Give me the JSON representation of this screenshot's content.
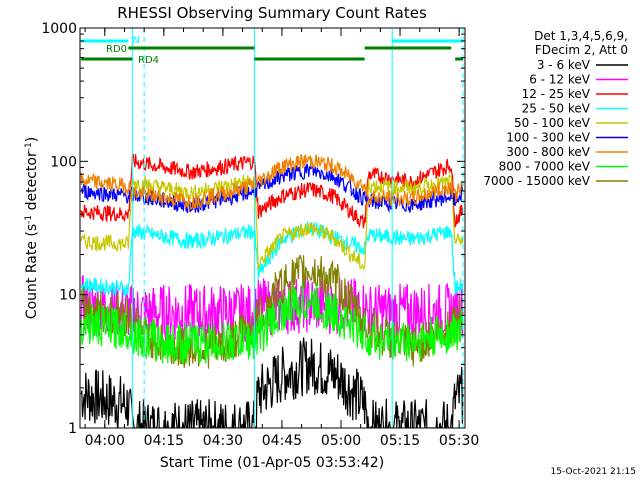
{
  "chart_data": {
    "type": "line",
    "title": "RHESSI Observing Summary Count Rates",
    "xlabel": "Start Time (01-Apr-05 03:53:42)",
    "ylabel": "Count Rate (s⁻¹ detector⁻¹)",
    "ylabel_parts": [
      "Count Rate (s",
      "-1",
      " detector",
      "-1",
      ")"
    ],
    "yscale": "log",
    "ylim": [
      1,
      1000
    ],
    "xlim": [
      "03:53:42",
      "05:31:30"
    ],
    "x_ticks": [
      "04:00",
      "04:15",
      "04:30",
      "04:45",
      "05:00",
      "05:15",
      "05:30"
    ],
    "y_ticks": [
      "1",
      "10",
      "100",
      "1000"
    ],
    "footer": "15-Oct-2021 21:15",
    "legend": {
      "placement": "right",
      "header": [
        "Det 1,3,4,5,6,9,",
        "FDecim 2, Att 0"
      ]
    },
    "series": [
      {
        "name": "3 - 6 keV",
        "color": "#000000",
        "x": [
          "03:54",
          "04:06",
          "04:07",
          "04:38",
          "04:39",
          "04:45",
          "04:52",
          "04:59",
          "05:06",
          "05:07",
          "05:28",
          "05:29",
          "05:31"
        ],
        "y": [
          1.8,
          1.5,
          1.0,
          1.0,
          1.8,
          2.5,
          3.0,
          2.5,
          1.5,
          1.0,
          1.0,
          1.6,
          1.8
        ]
      },
      {
        "name": "6 - 12 keV",
        "color": "#ff00ff",
        "x": [
          "03:54",
          "04:06",
          "04:07",
          "04:38",
          "04:39",
          "04:52",
          "05:06",
          "05:07",
          "05:28",
          "05:29",
          "05:31"
        ],
        "y": [
          8.5,
          7.5,
          7.3,
          7.3,
          8.0,
          8.5,
          8.0,
          7.4,
          7.4,
          7.6,
          8.0
        ]
      },
      {
        "name": "12 - 25 keV",
        "color": "#ff0000",
        "x": [
          "03:54",
          "04:06",
          "04:07",
          "04:22",
          "04:38",
          "04:39",
          "04:45",
          "04:52",
          "04:58",
          "05:06",
          "05:07",
          "05:18",
          "05:28",
          "05:29",
          "05:31"
        ],
        "y": [
          42,
          40,
          100,
          83,
          100,
          42,
          55,
          62,
          55,
          34,
          80,
          70,
          95,
          36,
          43
        ]
      },
      {
        "name": "25 - 50 keV",
        "color": "#00ffff",
        "x": [
          "03:54",
          "04:06",
          "04:07",
          "04:22",
          "04:38",
          "04:39",
          "04:45",
          "04:52",
          "04:58",
          "05:06",
          "05:07",
          "05:18",
          "05:28",
          "05:29",
          "05:31"
        ],
        "y": [
          12,
          11,
          30,
          25,
          30,
          14,
          26,
          32,
          27,
          22,
          28,
          26,
          30,
          11,
          12
        ]
      },
      {
        "name": "50 - 100 keV",
        "color": "#c8c800",
        "x": [
          "03:54",
          "04:06",
          "04:07",
          "04:22",
          "04:38",
          "04:39",
          "04:45",
          "04:52",
          "04:58",
          "05:06",
          "05:07",
          "05:18",
          "05:28",
          "05:29",
          "05:31"
        ],
        "y": [
          25,
          24,
          70,
          58,
          72,
          17,
          27,
          32,
          27,
          16,
          66,
          63,
          70,
          25,
          26
        ]
      },
      {
        "name": "100 - 300 keV",
        "color": "#0000ff",
        "x": [
          "03:54",
          "04:06",
          "04:07",
          "04:22",
          "04:38",
          "04:39",
          "04:45",
          "04:52",
          "04:58",
          "05:06",
          "05:07",
          "05:18",
          "05:28",
          "05:29",
          "05:31"
        ],
        "y": [
          60,
          55,
          56,
          46,
          60,
          63,
          78,
          86,
          78,
          52,
          50,
          47,
          55,
          50,
          60
        ]
      },
      {
        "name": "300 - 800 keV",
        "color": "#f08000",
        "x": [
          "03:54",
          "04:06",
          "04:07",
          "04:22",
          "04:38",
          "04:39",
          "04:45",
          "04:52",
          "04:58",
          "05:06",
          "05:07",
          "05:18",
          "05:28",
          "05:29",
          "05:31"
        ],
        "y": [
          72,
          65,
          58,
          50,
          66,
          70,
          92,
          102,
          92,
          65,
          54,
          52,
          65,
          55,
          68
        ]
      },
      {
        "name": "7000 - 15000 keV",
        "color": "#808000",
        "x": [
          "03:54",
          "04:06",
          "04:10",
          "04:17",
          "04:30",
          "04:38",
          "04:45",
          "04:52",
          "04:59",
          "05:06",
          "05:10",
          "05:18",
          "05:24",
          "05:31"
        ],
        "y": [
          8,
          7,
          5,
          4,
          4,
          6,
          12,
          15.5,
          12,
          6,
          5,
          4,
          5,
          7
        ]
      },
      {
        "name": "800 - 7000 keV",
        "color": "#00ff00",
        "x": [
          "03:54",
          "04:06",
          "04:10",
          "04:17",
          "04:30",
          "04:38",
          "04:45",
          "04:52",
          "04:59",
          "05:06",
          "05:10",
          "05:18",
          "05:24",
          "05:31"
        ],
        "y": [
          6,
          5.5,
          4.6,
          4.3,
          4.4,
          4.6,
          7.5,
          9,
          7,
          5,
          4.6,
          4.5,
          4.8,
          5.5
        ]
      }
    ],
    "markers": {
      "cyan_vertical_solid": [
        "03:53:42",
        "04:07",
        "04:38",
        "05:13"
      ],
      "cyan_vertical_dashed": [
        "04:10",
        "05:31"
      ],
      "labels": [
        {
          "text": "N",
          "color": "#00ffff",
          "segments": [
            [
              "03:54",
              "04:06"
            ],
            [
              "05:13",
              "05:31"
            ]
          ]
        },
        {
          "text": "RD0",
          "color": "#008000",
          "segments": [
            [
              "04:06",
              "04:38"
            ],
            [
              "05:06",
              "05:28"
            ]
          ]
        },
        {
          "text": "RD4",
          "color": "#008000",
          "segments": [
            [
              "03:54",
              "04:07"
            ],
            [
              "04:38",
              "05:06"
            ],
            [
              "05:29",
              "05:31"
            ]
          ]
        }
      ]
    }
  }
}
